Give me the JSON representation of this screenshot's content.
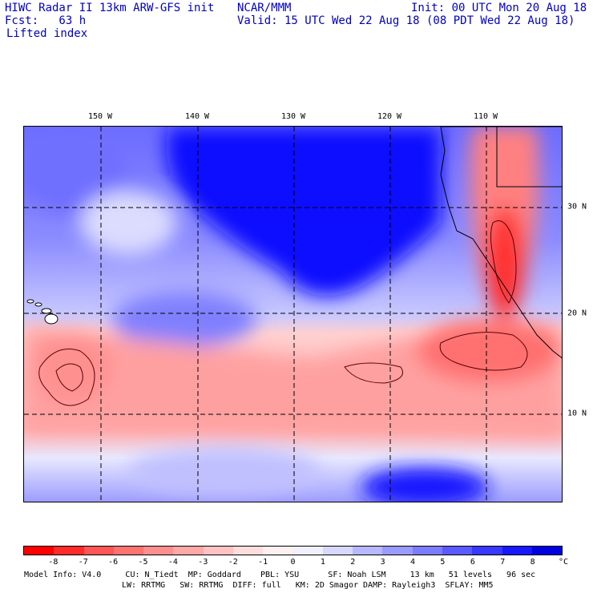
{
  "header": {
    "title_left": "HIWC Radar II 13km ARW-GFS init",
    "org": "NCAR/MMM",
    "init": "Init: 00 UTC Mon 20 Aug 18",
    "fcst": "Fcst:   63 h",
    "valid": "Valid: 15 UTC Wed 22 Aug 18 (08 PDT Wed 22 Aug 18)",
    "field": "Lifted index"
  },
  "map": {
    "lon_labels": [
      "150 W",
      "140 W",
      "130 W",
      "120 W",
      "110 W"
    ],
    "lat_labels": [
      "30 N",
      "20 N",
      "10 N"
    ]
  },
  "colorbar": {
    "unit": "°C",
    "ticks": [
      "-8",
      "-7",
      "-6",
      "-5",
      "-4",
      "-3",
      "-2",
      "-1",
      "0",
      "1",
      "2",
      "3",
      "4",
      "5",
      "6",
      "7",
      "8"
    ],
    "colors": [
      "#ff0000",
      "#ff2a2a",
      "#ff5555",
      "#ff7272",
      "#ff8f8f",
      "#ffa8a8",
      "#ffc3c3",
      "#ffdddd",
      "#fff0f0",
      "#f0f0ff",
      "#d8d8ff",
      "#b8b8ff",
      "#9a9aff",
      "#7c7cff",
      "#5a5aff",
      "#3838ff",
      "#1818ff",
      "#0000e0"
    ]
  },
  "footer": {
    "line1": "Model Info: V4.0     CU: N_Tiedt  MP: Goddard    PBL: YSU      SF: Noah LSM     13 km   51 levels   96 sec",
    "line2": "LW: RRTMG   SW: RRTMG  DIFF: full   KM: 2D Smagor DAMP: Rayleigh3  SFLAY: MM5"
  }
}
